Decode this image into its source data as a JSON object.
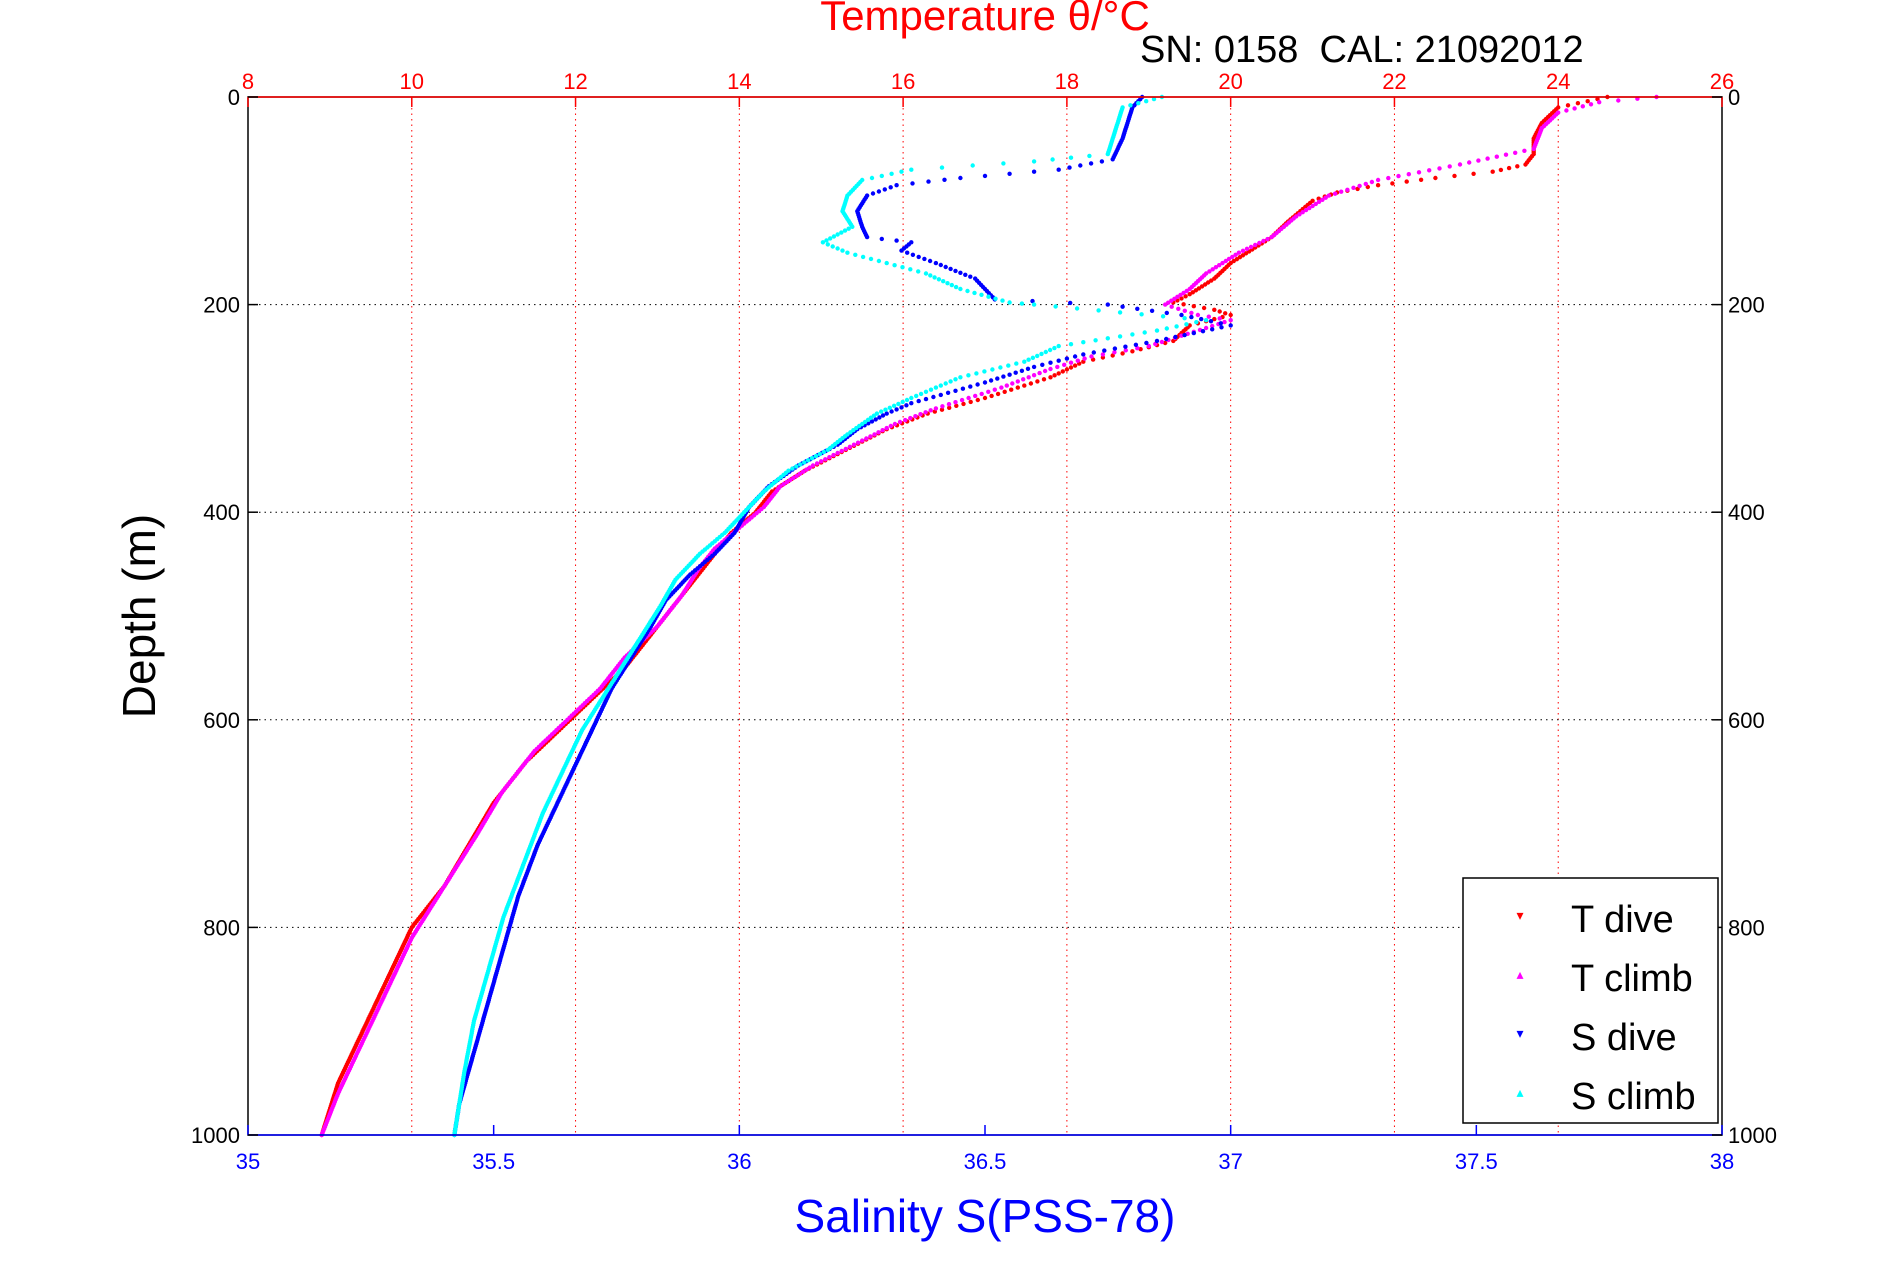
{
  "chart_data": {
    "type": "scatter",
    "title": "Temperature θ/°C",
    "subtitle": "SN: 0158  CAL: 21092012",
    "xlabel": "Salinity S(PSS-78)",
    "ylabel": "Depth (m)",
    "grid": true,
    "legend_position": "bottom-right",
    "colors": {
      "title": "#ff0000",
      "salinity_axis": "#0000ff",
      "frame": "#000000"
    },
    "top_axis": {
      "label": "Temperature θ/°C",
      "range": [
        8,
        26
      ],
      "ticks": [
        8,
        10,
        12,
        14,
        16,
        18,
        20,
        22,
        24,
        26
      ]
    },
    "bottom_axis": {
      "label": "Salinity S(PSS-78)",
      "range": [
        35,
        38
      ],
      "ticks": [
        "35",
        "35.5",
        "36",
        "36.5",
        "37",
        "37.5",
        "38"
      ]
    },
    "y_axis": {
      "label": "Depth (m)",
      "range": [
        0,
        1000
      ],
      "reversed": true,
      "ticks": [
        0,
        200,
        400,
        600,
        800,
        1000
      ]
    },
    "series": [
      {
        "name": "T dive",
        "axis": "temperature",
        "color": "#ff0000",
        "marker": "▾",
        "points": [
          [
            24.6,
            0
          ],
          [
            24.0,
            10
          ],
          [
            23.8,
            25
          ],
          [
            23.7,
            40
          ],
          [
            23.7,
            55
          ],
          [
            23.6,
            65
          ],
          [
            23.2,
            72
          ],
          [
            22.5,
            78
          ],
          [
            21.8,
            85
          ],
          [
            21.3,
            92
          ],
          [
            21.0,
            100
          ],
          [
            20.7,
            120
          ],
          [
            20.5,
            135
          ],
          [
            20.3,
            145
          ],
          [
            20.0,
            160
          ],
          [
            19.8,
            175
          ],
          [
            19.5,
            190
          ],
          [
            19.3,
            198
          ],
          [
            19.8,
            205
          ],
          [
            20.0,
            210
          ],
          [
            19.5,
            220
          ],
          [
            19.3,
            235
          ],
          [
            18.8,
            245
          ],
          [
            18.2,
            255
          ],
          [
            17.8,
            270
          ],
          [
            17.0,
            290
          ],
          [
            16.3,
            305
          ],
          [
            15.8,
            320
          ],
          [
            15.3,
            340
          ],
          [
            14.8,
            360
          ],
          [
            14.4,
            380
          ],
          [
            14.2,
            400
          ],
          [
            13.9,
            420
          ],
          [
            13.7,
            440
          ],
          [
            13.5,
            460
          ],
          [
            13.2,
            490
          ],
          [
            12.9,
            520
          ],
          [
            12.6,
            550
          ],
          [
            12.2,
            580
          ],
          [
            11.8,
            610
          ],
          [
            11.4,
            640
          ],
          [
            11.0,
            680
          ],
          [
            10.7,
            720
          ],
          [
            10.4,
            760
          ],
          [
            10.0,
            800
          ],
          [
            9.7,
            850
          ],
          [
            9.4,
            900
          ],
          [
            9.1,
            950
          ],
          [
            8.9,
            1000
          ]
        ]
      },
      {
        "name": "T climb",
        "axis": "temperature",
        "color": "#ff00ff",
        "marker": "▴",
        "points": [
          [
            25.2,
            0
          ],
          [
            24.5,
            5
          ],
          [
            24.0,
            15
          ],
          [
            23.8,
            30
          ],
          [
            23.7,
            50
          ],
          [
            22.8,
            65
          ],
          [
            21.8,
            80
          ],
          [
            21.2,
            95
          ],
          [
            20.8,
            115
          ],
          [
            20.5,
            135
          ],
          [
            20.1,
            150
          ],
          [
            19.7,
            170
          ],
          [
            19.5,
            185
          ],
          [
            19.2,
            200
          ],
          [
            19.6,
            210
          ],
          [
            20.0,
            215
          ],
          [
            19.4,
            230
          ],
          [
            19.0,
            240
          ],
          [
            18.3,
            250
          ],
          [
            17.8,
            262
          ],
          [
            17.2,
            280
          ],
          [
            16.4,
            300
          ],
          [
            15.9,
            315
          ],
          [
            15.4,
            335
          ],
          [
            14.9,
            355
          ],
          [
            14.5,
            375
          ],
          [
            14.3,
            395
          ],
          [
            14.0,
            415
          ],
          [
            13.7,
            435
          ],
          [
            13.5,
            455
          ],
          [
            13.3,
            480
          ],
          [
            13.0,
            510
          ],
          [
            12.6,
            540
          ],
          [
            12.3,
            570
          ],
          [
            11.9,
            600
          ],
          [
            11.5,
            630
          ],
          [
            11.1,
            670
          ],
          [
            10.8,
            710
          ],
          [
            10.4,
            760
          ],
          [
            10.0,
            810
          ],
          [
            9.7,
            860
          ],
          [
            9.4,
            910
          ],
          [
            9.1,
            960
          ],
          [
            8.9,
            1000
          ]
        ]
      },
      {
        "name": "S dive",
        "axis": "salinity",
        "color": "#0000ff",
        "marker": "▾",
        "points": [
          [
            36.82,
            0
          ],
          [
            36.8,
            10
          ],
          [
            36.79,
            25
          ],
          [
            36.78,
            40
          ],
          [
            36.76,
            60
          ],
          [
            36.65,
            70
          ],
          [
            36.45,
            78
          ],
          [
            36.32,
            85
          ],
          [
            36.26,
            95
          ],
          [
            36.24,
            110
          ],
          [
            36.25,
            125
          ],
          [
            36.26,
            135
          ],
          [
            36.35,
            140
          ],
          [
            36.33,
            148
          ],
          [
            36.4,
            160
          ],
          [
            36.48,
            175
          ],
          [
            36.52,
            195
          ],
          [
            36.75,
            200
          ],
          [
            36.9,
            210
          ],
          [
            37.0,
            220
          ],
          [
            36.85,
            235
          ],
          [
            36.7,
            248
          ],
          [
            36.6,
            260
          ],
          [
            36.5,
            275
          ],
          [
            36.35,
            295
          ],
          [
            36.3,
            305
          ],
          [
            36.24,
            320
          ],
          [
            36.2,
            335
          ],
          [
            36.12,
            355
          ],
          [
            36.06,
            375
          ],
          [
            36.02,
            395
          ],
          [
            35.99,
            420
          ],
          [
            35.95,
            440
          ],
          [
            35.9,
            460
          ],
          [
            35.85,
            485
          ],
          [
            35.82,
            510
          ],
          [
            35.78,
            540
          ],
          [
            35.74,
            570
          ],
          [
            35.71,
            600
          ],
          [
            35.67,
            640
          ],
          [
            35.63,
            680
          ],
          [
            35.59,
            720
          ],
          [
            35.55,
            770
          ],
          [
            35.52,
            820
          ],
          [
            35.49,
            870
          ],
          [
            35.46,
            920
          ],
          [
            35.43,
            970
          ],
          [
            35.42,
            1000
          ]
        ]
      },
      {
        "name": "S climb",
        "axis": "salinity",
        "color": "#00ffff",
        "marker": "▴",
        "points": [
          [
            36.86,
            0
          ],
          [
            36.78,
            10
          ],
          [
            36.77,
            25
          ],
          [
            36.76,
            40
          ],
          [
            36.75,
            55
          ],
          [
            36.6,
            62
          ],
          [
            36.35,
            70
          ],
          [
            36.25,
            80
          ],
          [
            36.22,
            95
          ],
          [
            36.21,
            110
          ],
          [
            36.23,
            125
          ],
          [
            36.17,
            140
          ],
          [
            36.22,
            150
          ],
          [
            36.3,
            160
          ],
          [
            36.38,
            170
          ],
          [
            36.45,
            185
          ],
          [
            36.55,
            198
          ],
          [
            36.6,
            200
          ],
          [
            36.95,
            215
          ],
          [
            36.85,
            225
          ],
          [
            36.65,
            240
          ],
          [
            36.58,
            255
          ],
          [
            36.45,
            270
          ],
          [
            36.35,
            290
          ],
          [
            36.28,
            305
          ],
          [
            36.22,
            325
          ],
          [
            36.18,
            340
          ],
          [
            36.1,
            360
          ],
          [
            36.05,
            380
          ],
          [
            36.01,
            400
          ],
          [
            35.97,
            420
          ],
          [
            35.92,
            440
          ],
          [
            35.87,
            465
          ],
          [
            35.84,
            490
          ],
          [
            35.8,
            520
          ],
          [
            35.76,
            550
          ],
          [
            35.72,
            580
          ],
          [
            35.68,
            610
          ],
          [
            35.64,
            650
          ],
          [
            35.6,
            690
          ],
          [
            35.56,
            740
          ],
          [
            35.52,
            790
          ],
          [
            35.49,
            840
          ],
          [
            35.46,
            890
          ],
          [
            35.44,
            940
          ],
          [
            35.42,
            1000
          ]
        ]
      }
    ]
  }
}
